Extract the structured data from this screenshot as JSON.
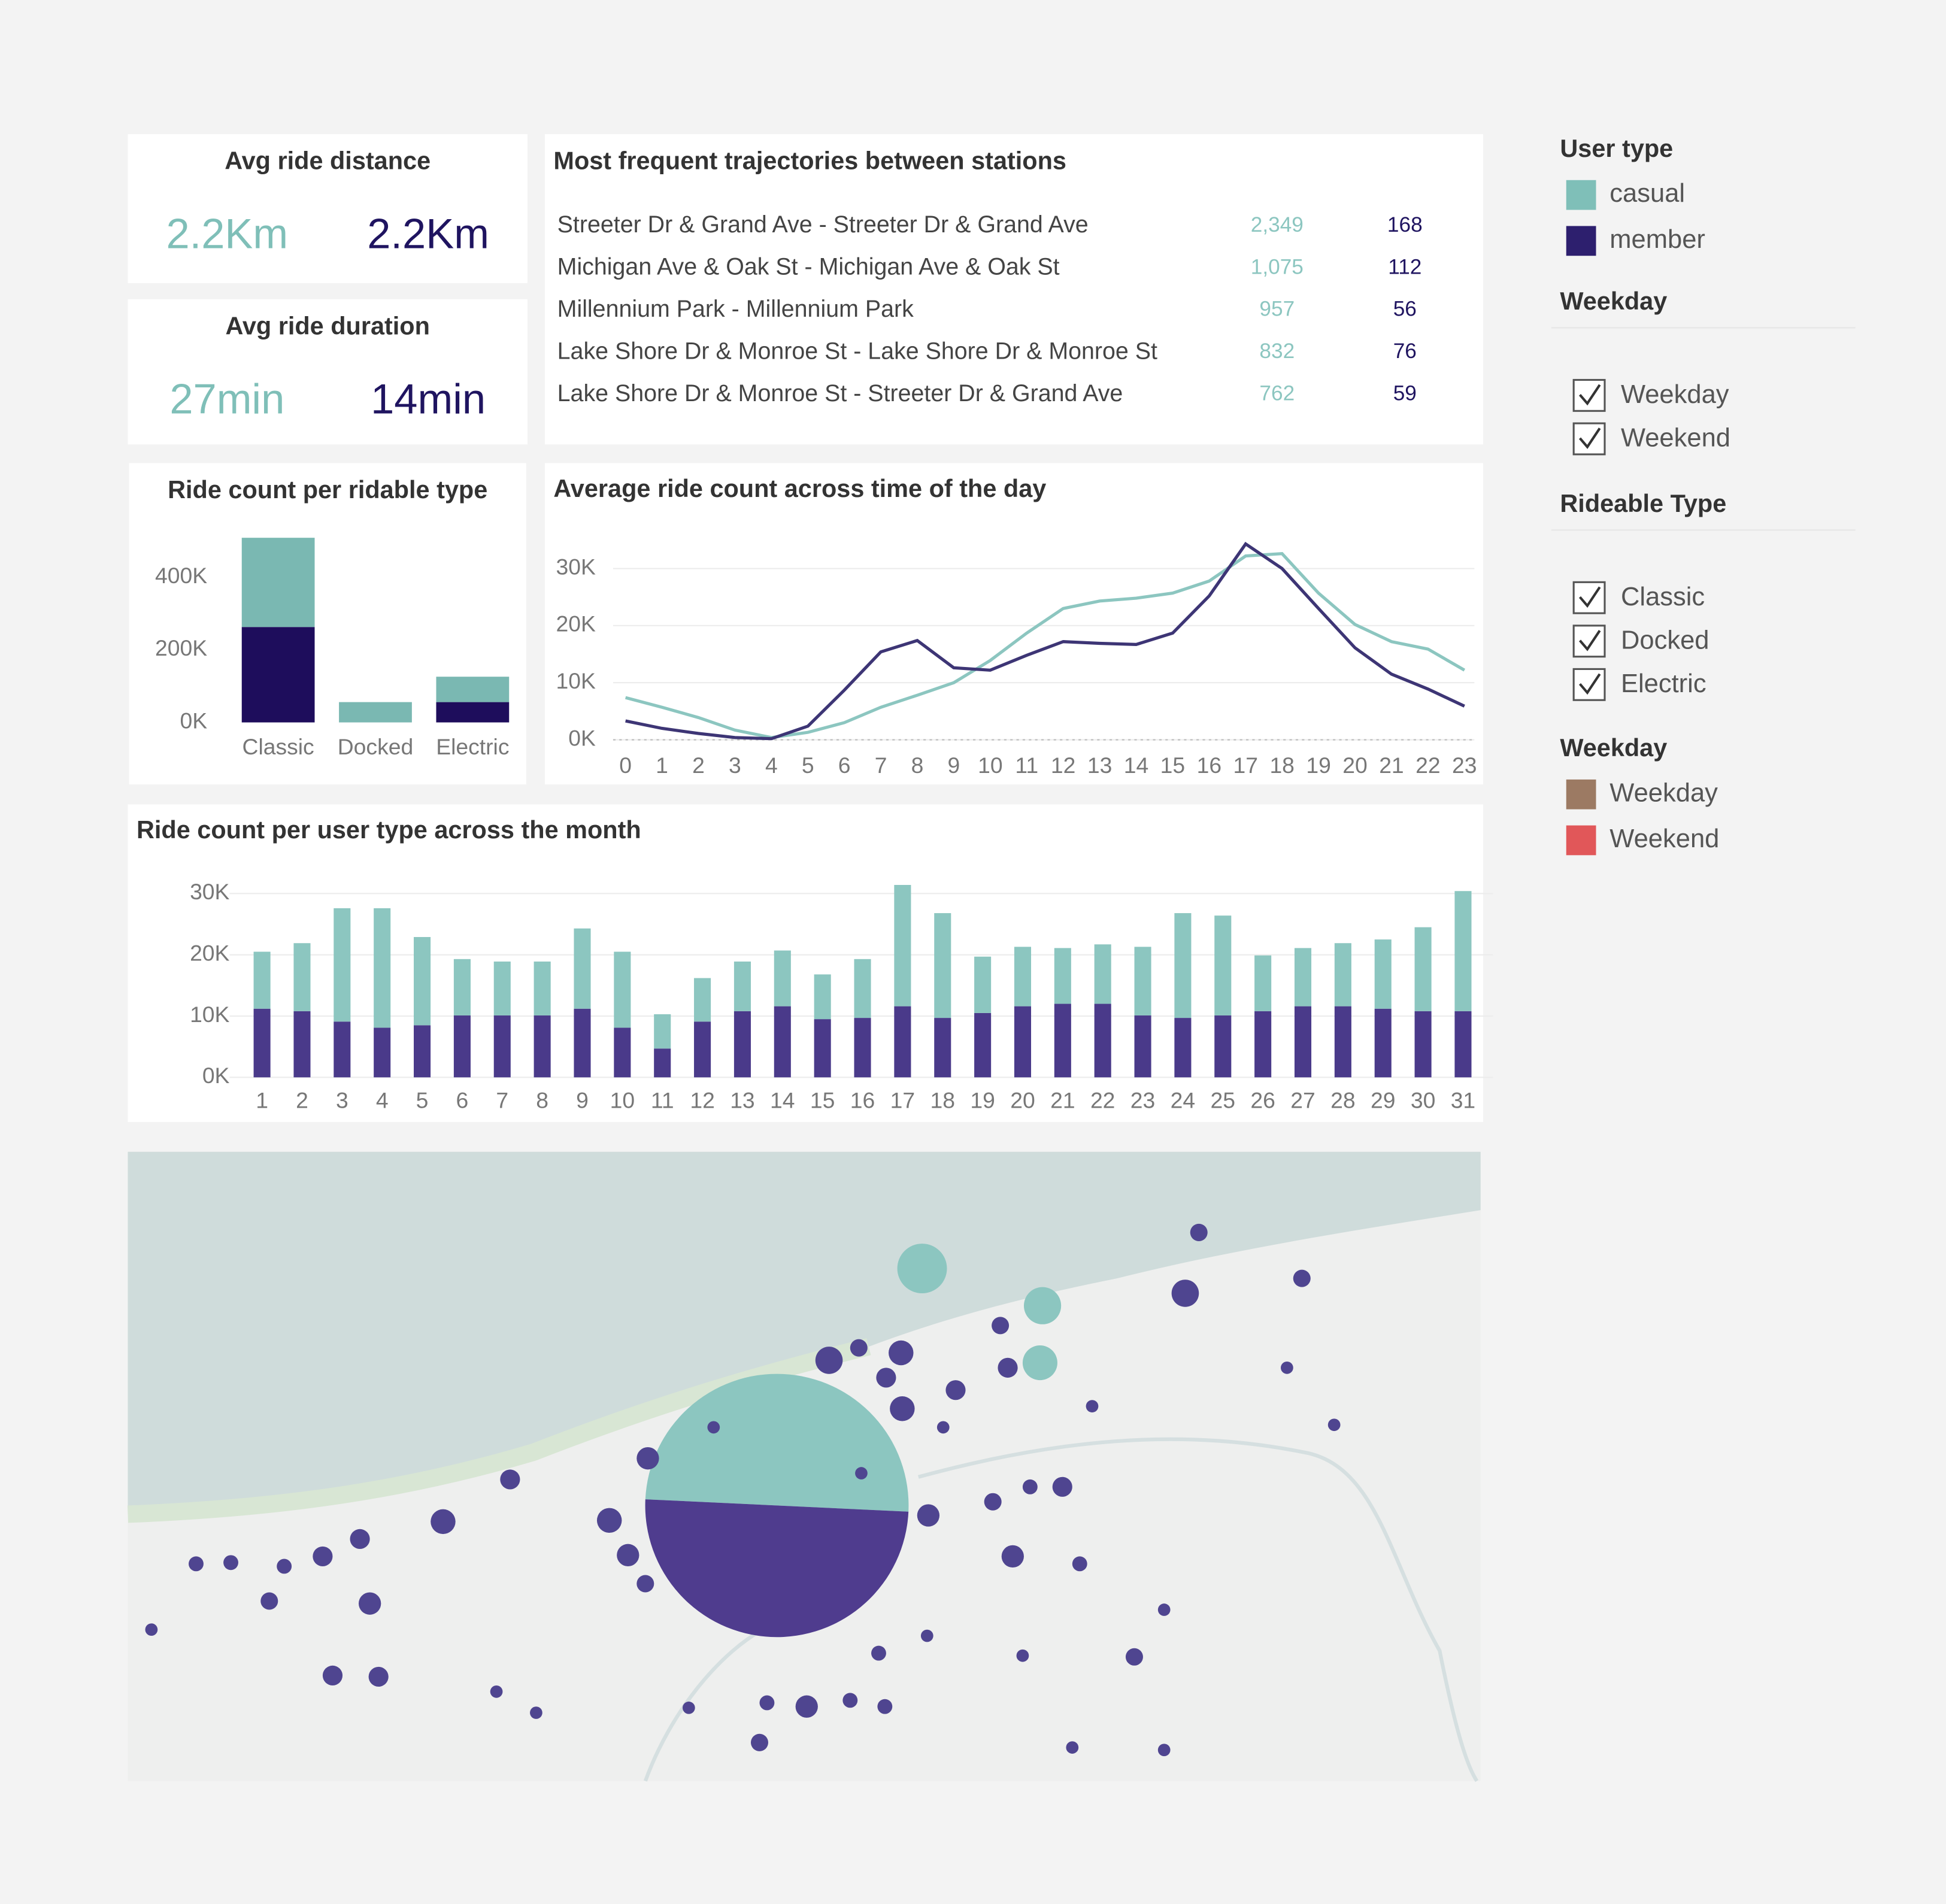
{
  "kpis": [
    {
      "title": "Avg ride distance",
      "casual": "2.2Km",
      "member": "2.2Km"
    },
    {
      "title": "Avg ride duration",
      "casual": "27min",
      "member": "14min"
    }
  ],
  "trajectories": {
    "title": "Most frequent trajectories between stations",
    "rows": [
      [
        "Streeter Dr & Grand Ave - Streeter Dr & Grand Ave",
        "2,349",
        "168"
      ],
      [
        "Michigan Ave & Oak St - Michigan Ave & Oak St",
        "1,075",
        "112"
      ],
      [
        "Millennium Park - Millennium Park",
        "957",
        "56"
      ],
      [
        "Lake Shore Dr & Monroe St - Lake Shore Dr & Monroe St",
        "832",
        "76"
      ],
      [
        "Lake Shore Dr & Monroe St - Streeter Dr & Grand Ave",
        "762",
        "59"
      ]
    ]
  },
  "chart_data": [
    {
      "type": "bar",
      "stacked": true,
      "title": "Ride count per ridable type",
      "categories": [
        "Classic",
        "Docked",
        "Electric"
      ],
      "series": [
        {
          "color": "#1e0d5c",
          "values": [
            263000,
            0,
            56000
          ]
        },
        {
          "color": "#7ab8b2",
          "values": [
            246000,
            56000,
            70000
          ]
        }
      ],
      "ylim": [
        0,
        520000
      ],
      "yticks": [
        {
          "value": 0,
          "label": "0K"
        },
        {
          "value": 200000,
          "label": "200K"
        },
        {
          "value": 400000,
          "label": "400K"
        }
      ],
      "grid": false
    },
    {
      "type": "line",
      "title": "Average ride count across time of the day",
      "x": [
        0,
        1,
        2,
        3,
        4,
        5,
        6,
        7,
        8,
        9,
        10,
        11,
        12,
        13,
        14,
        15,
        16,
        17,
        18,
        19,
        20,
        21,
        22,
        23
      ],
      "xlim": [
        0,
        23
      ],
      "series": [
        {
          "color": "#8cc6c0",
          "values": [
            7400,
            5700,
            3900,
            1700,
            400,
            1300,
            3000,
            5700,
            7800,
            10000,
            13900,
            18700,
            23000,
            24300,
            24800,
            25700,
            27800,
            32200,
            32600,
            25700,
            20200,
            17200,
            15900,
            12200
          ]
        },
        {
          "color": "#3d3575",
          "values": [
            3300,
            2000,
            1100,
            400,
            200,
            2400,
            8700,
            15400,
            17400,
            12600,
            12200,
            14800,
            17200,
            16900,
            16700,
            18700,
            25200,
            34300,
            30000,
            23000,
            16100,
            11500,
            8900,
            5900
          ]
        }
      ],
      "ylim": [
        0,
        35000
      ],
      "yticks": [
        {
          "value": 0,
          "label": "0K"
        },
        {
          "value": 10000,
          "label": "10K"
        },
        {
          "value": 20000,
          "label": "20K"
        },
        {
          "value": 30000,
          "label": "30K"
        }
      ],
      "grid": true
    },
    {
      "type": "bar",
      "stacked": true,
      "title": "Ride count per user type across the month",
      "x": [
        1,
        2,
        3,
        4,
        5,
        6,
        7,
        8,
        9,
        10,
        11,
        12,
        13,
        14,
        15,
        16,
        17,
        18,
        19,
        20,
        21,
        22,
        23,
        24,
        25,
        26,
        27,
        28,
        29,
        30,
        31
      ],
      "xlim": [
        0.5,
        31.5
      ],
      "series": [
        {
          "color": "#4a3a8a",
          "values": [
            11200,
            10800,
            9100,
            8100,
            8500,
            10100,
            10100,
            10100,
            11200,
            8100,
            4700,
            9100,
            10800,
            11600,
            9500,
            9700,
            11600,
            9700,
            10500,
            11600,
            12000,
            12000,
            10100,
            9700,
            10100,
            10800,
            11600,
            11600,
            11200,
            10800,
            10800
          ]
        },
        {
          "color": "#8cc6c0",
          "values": [
            9300,
            11100,
            18500,
            19500,
            14400,
            9200,
            8800,
            8800,
            13100,
            12400,
            5600,
            7100,
            8100,
            9100,
            7300,
            9600,
            19800,
            17100,
            9200,
            9700,
            9100,
            9700,
            11200,
            17100,
            16300,
            9100,
            9500,
            10300,
            11300,
            13700,
            19600
          ]
        }
      ],
      "ylim": [
        0,
        32000
      ],
      "yticks": [
        {
          "value": 0,
          "label": "0K"
        },
        {
          "value": 10000,
          "label": "10K"
        },
        {
          "value": 20000,
          "label": "20K"
        },
        {
          "value": 30000,
          "label": "30K"
        }
      ],
      "grid": true
    }
  ],
  "filters": {
    "user_type": {
      "title": "User type",
      "items": [
        {
          "name": "casual",
          "color": "#7fbfb8"
        },
        {
          "name": "member",
          "color": "#2d1f6e"
        }
      ]
    },
    "weekday": {
      "title": "Weekday",
      "options": [
        "Weekday",
        "Weekend"
      ]
    },
    "rideable_type": {
      "title": "Rideable Type",
      "options": [
        "Classic",
        "Docked",
        "Electric"
      ]
    },
    "weekday_legend": {
      "title": "Weekday",
      "items": [
        {
          "name": "Weekday",
          "color": "#9c7a63"
        },
        {
          "name": "Weekend",
          "color": "#e15759"
        }
      ]
    }
  }
}
